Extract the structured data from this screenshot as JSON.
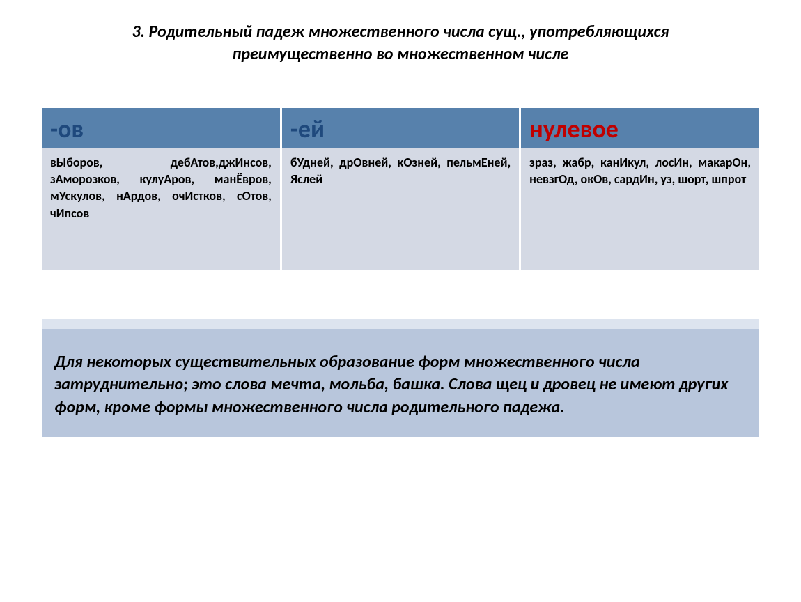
{
  "title": "3. Родительный падеж множественного числа сущ., употребляющихся преимущественно во множественном числе",
  "table": {
    "header_bg": "#5781ac",
    "body_bg": "#d4d9e4",
    "columns": [
      {
        "label": "-ов",
        "font_size": 36,
        "color": "#1f497d"
      },
      {
        "label": "-ей",
        "font_size": 36,
        "color": "#1f497d"
      },
      {
        "label": "нулевое",
        "font_size": 36,
        "color": "#c00000"
      }
    ],
    "rows": [
      [
        "вЫборов, дебАтов,джИнсов, зАморозков, кулуАров, манЁвров, мУскулов, нАрдов, очИстков, сОтов,\nчИпсов",
        "бУдней, дрОвней, кОзней, пельмЕней, Яслей",
        "зраз, жабр, канИкул, лосИн, макарОн, невзгОд, окОв, сардИн, уз, шорт, шпрот"
      ]
    ]
  },
  "note": "Для некоторых существительных образование форм множественного числа затруднительно; это слова мечта, мольба, башка. Слова щец и дровец не имеют других форм, кроме формы множественного числа родительного падежа."
}
